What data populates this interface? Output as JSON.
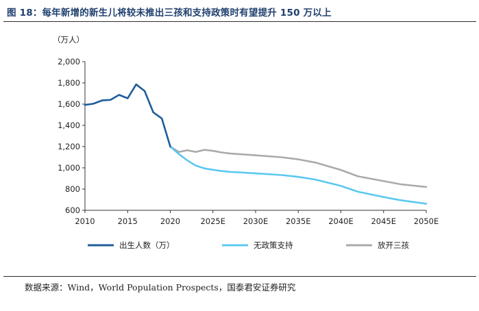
{
  "title": "图 18：每年新增的新生儿将较未推出三孩和支持政策时有望提升 150 万以上",
  "source": "数据来源：Wind，World Population Prospects，国泰君安证券研究",
  "chart_data": {
    "type": "line",
    "ylabel": "（万人）",
    "xlim": [
      2010,
      2050
    ],
    "ylim": [
      600,
      2000
    ],
    "y_ticks": [
      600,
      800,
      1000,
      1200,
      1400,
      1600,
      1800,
      2000
    ],
    "y_tick_labels": [
      "600",
      "800",
      "1,000",
      "1,200",
      "1,400",
      "1,600",
      "1,800",
      "2,000"
    ],
    "x_ticks": [
      2010,
      2015,
      2020,
      2025,
      2030,
      2035,
      2040,
      2045,
      2050
    ],
    "x_tick_labels": [
      "2010",
      "2015",
      "2020",
      "2025E",
      "2030E",
      "2035E",
      "2040E",
      "2045E",
      "2050E"
    ],
    "grid": false,
    "legend_position": "bottom",
    "series": [
      {
        "name": "出生人数（万）",
        "color": "#1f5c99",
        "points": [
          [
            2010,
            1592
          ],
          [
            2011,
            1604
          ],
          [
            2012,
            1635
          ],
          [
            2013,
            1640
          ],
          [
            2014,
            1687
          ],
          [
            2015,
            1655
          ],
          [
            2016,
            1786
          ],
          [
            2017,
            1723
          ],
          [
            2018,
            1523
          ],
          [
            2019,
            1465
          ],
          [
            2020,
            1200
          ]
        ]
      },
      {
        "name": "无政策支持",
        "color": "#5bc8ef",
        "points": [
          [
            2020,
            1200
          ],
          [
            2021,
            1130
          ],
          [
            2022,
            1070
          ],
          [
            2023,
            1020
          ],
          [
            2024,
            995
          ],
          [
            2025,
            982
          ],
          [
            2026,
            970
          ],
          [
            2027,
            962
          ],
          [
            2028,
            958
          ],
          [
            2030,
            948
          ],
          [
            2033,
            932
          ],
          [
            2035,
            915
          ],
          [
            2037,
            890
          ],
          [
            2040,
            830
          ],
          [
            2042,
            775
          ],
          [
            2045,
            725
          ],
          [
            2047,
            695
          ],
          [
            2050,
            662
          ]
        ]
      },
      {
        "name": "放开三孩",
        "color": "#aaaaaa",
        "points": [
          [
            2020,
            1200
          ],
          [
            2021,
            1150
          ],
          [
            2022,
            1165
          ],
          [
            2023,
            1150
          ],
          [
            2024,
            1170
          ],
          [
            2025,
            1160
          ],
          [
            2026,
            1145
          ],
          [
            2027,
            1135
          ],
          [
            2028,
            1130
          ],
          [
            2030,
            1118
          ],
          [
            2033,
            1100
          ],
          [
            2035,
            1080
          ],
          [
            2037,
            1050
          ],
          [
            2040,
            980
          ],
          [
            2042,
            920
          ],
          [
            2045,
            875
          ],
          [
            2047,
            845
          ],
          [
            2050,
            820
          ]
        ]
      }
    ]
  }
}
